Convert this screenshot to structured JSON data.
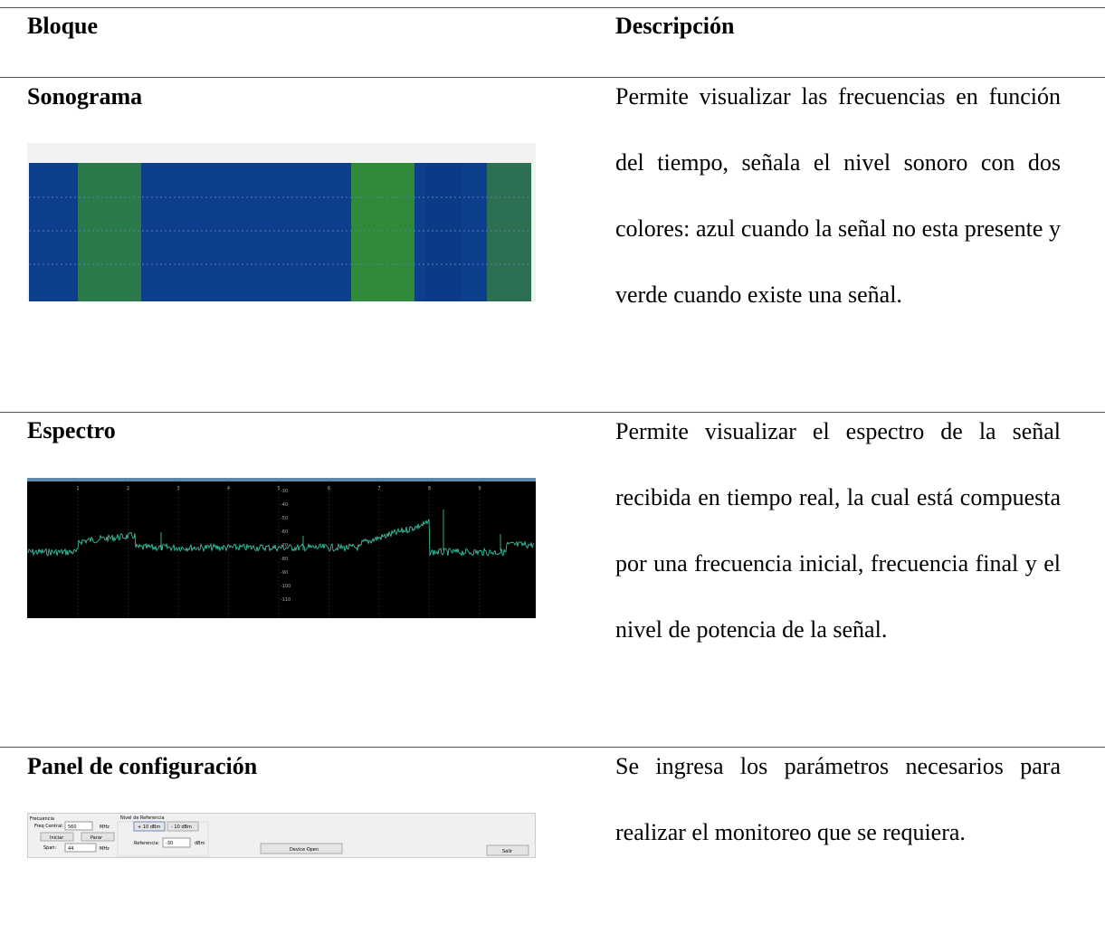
{
  "table": {
    "headers": [
      "Bloque",
      "Descripción"
    ],
    "rows": [
      {
        "block": "Sonograma",
        "description": "Permite visualizar las frecuencias en función del tiempo, señala el nivel sonoro con dos colores: azul cuando la señal no esta presente y verde cuando existe una señal."
      },
      {
        "block": "Espectro",
        "description": "Permite visualizar el espectro de la señal recibida en tiempo real, la cual está compuesta por una frecuencia inicial, frecuencia final y el nivel de potencia de la señal."
      },
      {
        "block": "Panel de configuración",
        "description": "Se ingresa los parámetros necesarios para realizar el monitoreo que se requiera."
      }
    ]
  },
  "spectrum_figure": {
    "x_labels": [
      "1",
      "2",
      "3",
      "4",
      "5",
      "6",
      "7",
      "8",
      "9"
    ],
    "y_labels": [
      "-30",
      "-40",
      "-50",
      "-60",
      "-70",
      "-80",
      "-90",
      "-100",
      "-110"
    ]
  },
  "config_panel": {
    "freq_group": "Frecuencia",
    "freq_central_label": "Freq Central:",
    "freq_central_value": "560",
    "freq_unit": "MHz",
    "start_button": "Iniciar",
    "stop_button": "Parar",
    "span_label": "Span:",
    "span_value": "44",
    "span_unit": "MHz",
    "ref_group": "Nivel de Referencia",
    "plus_button": "+ 10 dBm",
    "minus_button": "- 10 dBm",
    "ref_label": "Referencia:",
    "ref_value": "-30",
    "ref_unit": "dBm",
    "device_button": "Device Open",
    "exit_button": "Salir"
  }
}
